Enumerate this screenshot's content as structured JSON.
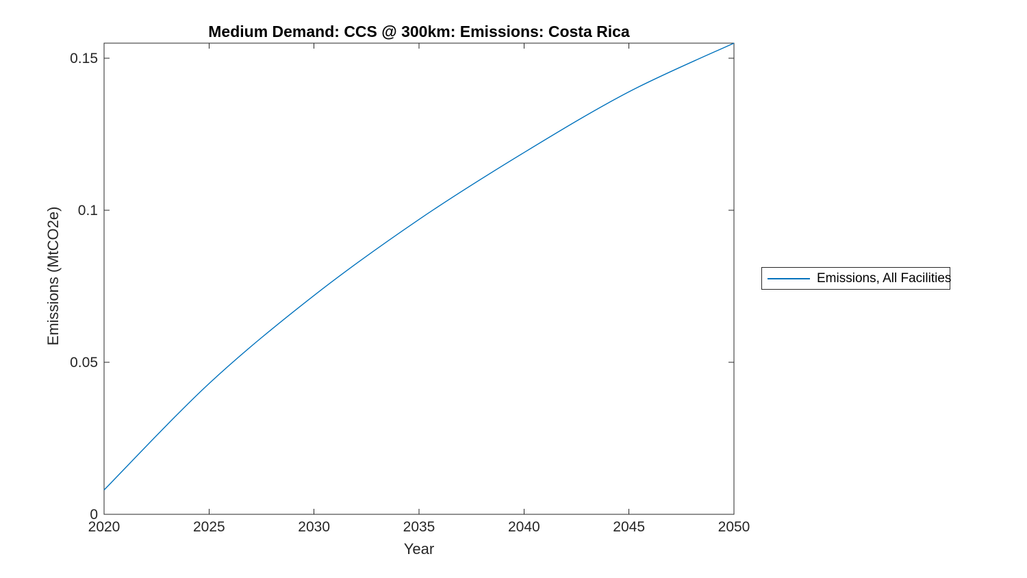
{
  "chart_data": {
    "type": "line",
    "title": "Medium Demand: CCS @ 300km: Emissions: Costa Rica",
    "xlabel": "Year",
    "ylabel": "Emissions (MtCO2e)",
    "x": [
      2020,
      2025,
      2030,
      2035,
      2040,
      2045,
      2050
    ],
    "series": [
      {
        "name": "Emissions, All Facilities",
        "values": [
          0.008,
          0.043,
          0.072,
          0.097,
          0.119,
          0.139,
          0.155
        ],
        "color": "#0072BD"
      }
    ],
    "xlim": [
      2020,
      2050
    ],
    "ylim": [
      0,
      0.155
    ],
    "xticks": [
      2020,
      2025,
      2030,
      2035,
      2040,
      2045,
      2050
    ],
    "xtick_labels": [
      "2020",
      "2025",
      "2030",
      "2035",
      "2040",
      "2045",
      "2050"
    ],
    "yticks": [
      0,
      0.05,
      0.1,
      0.15
    ],
    "ytick_labels": [
      "0",
      "0.05",
      "0.1",
      "0.15"
    ],
    "grid": false,
    "legend_position": "right-outside",
    "colors": {
      "line": "#0072BD",
      "axis": "#262626",
      "title": "#000000",
      "background": "#ffffff"
    }
  }
}
